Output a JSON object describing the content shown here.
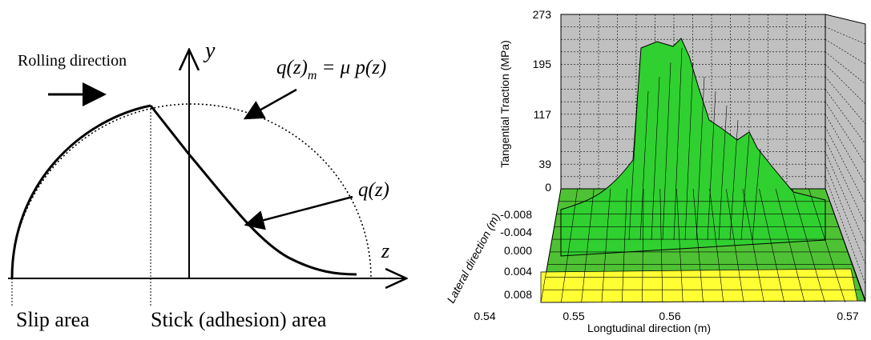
{
  "diagram": {
    "rolling_direction": "Rolling direction",
    "y_axis": "y",
    "z_axis": "z",
    "max_traction_lhs": "q(z)",
    "max_traction_sub": "m",
    "max_traction_rhs": "= μ p(z)",
    "traction": "q(z)",
    "slip_area": "Slip area",
    "stick_area": "Stick (adhesion) area"
  },
  "surface_plot": {
    "z_axis_label": "Tangential Traction (MPa)",
    "z_ticks": [
      "273",
      "195",
      "117",
      "39",
      "0"
    ],
    "y_axis_label": "Lateral direction (m)",
    "y_ticks": [
      "-0.008",
      "-0.004",
      "0.000",
      "0.004",
      "0.008"
    ],
    "x_axis_label": "Longtudinal direction (m)",
    "x_ticks": [
      "0.54",
      "0.55",
      "0.56",
      "0.57"
    ]
  }
}
